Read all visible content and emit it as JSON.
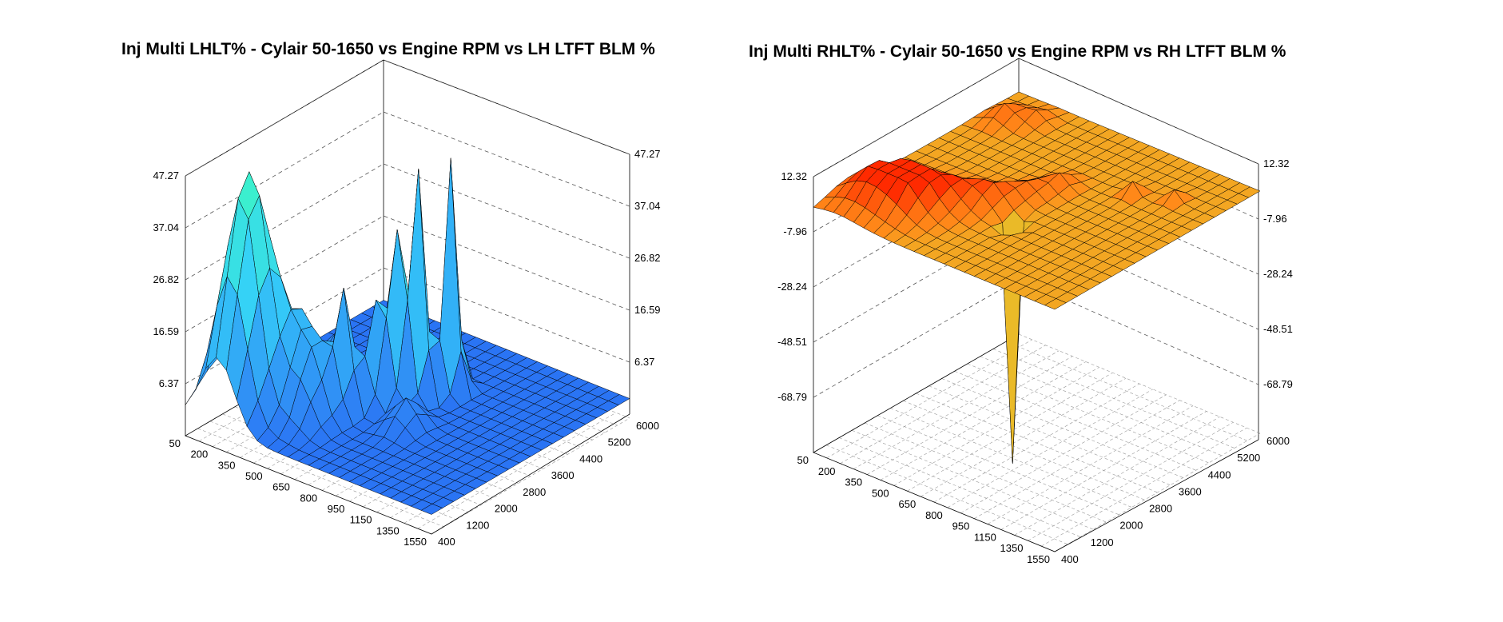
{
  "chart_data": [
    {
      "type": "surface3d",
      "title": "Inj Multi LHLT% - Cylair 50-1650 vs Engine RPM vs LH LTFT BLM %",
      "x_ticks": [
        "200",
        "350",
        "500",
        "650",
        "800",
        "950",
        "1150",
        "1350",
        "1550"
      ],
      "x_min_label": "50",
      "y_ticks": [
        "400",
        "1200",
        "2000",
        "2800",
        "3600",
        "4400",
        "5200",
        "6000"
      ],
      "z_ticks": [
        "6.37",
        "16.59",
        "26.82",
        "37.04",
        "47.27"
      ],
      "zlim": [
        -3.85,
        47.27
      ],
      "colormap": [
        "#1a3cf0",
        "#2f86f5",
        "#35d0f8",
        "#3cf5c8"
      ],
      "grid": {
        "nx": 24,
        "ny": 18
      },
      "base_level": 0,
      "peaks": [
        {
          "x": 3,
          "y": 2,
          "h": 27,
          "w": 1.6
        },
        {
          "x": 4,
          "y": 3,
          "h": 20,
          "w": 1.4
        },
        {
          "x": 2,
          "y": 4,
          "h": 16,
          "w": 1.3
        },
        {
          "x": 6,
          "y": 5,
          "h": 14,
          "w": 1.2
        },
        {
          "x": 8,
          "y": 4,
          "h": 12,
          "w": 1.2
        },
        {
          "x": 9,
          "y": 6,
          "h": 22,
          "w": 0.7
        },
        {
          "x": 10,
          "y": 8,
          "h": 17,
          "w": 0.8
        },
        {
          "x": 11,
          "y": 9,
          "h": 28,
          "w": 0.7
        },
        {
          "x": 12,
          "y": 10,
          "h": 42,
          "w": 0.6
        },
        {
          "x": 13,
          "y": 12,
          "h": 46,
          "w": 0.55
        },
        {
          "x": 5,
          "y": 9,
          "h": 9,
          "w": 1.2
        },
        {
          "x": 14,
          "y": 7,
          "h": 6,
          "w": 1.0
        }
      ]
    },
    {
      "type": "surface3d",
      "title": "Inj Multi RHLT% - Cylair 50-1650 vs Engine RPM vs RH LTFT BLM %",
      "x_ticks": [
        "200",
        "350",
        "500",
        "650",
        "800",
        "950",
        "1150",
        "1350",
        "1550"
      ],
      "x_min_label": "50",
      "y_ticks": [
        "400",
        "1200",
        "2000",
        "2800",
        "3600",
        "4400",
        "5200",
        "6000"
      ],
      "z_ticks": [
        "-68.79",
        "-48.51",
        "-28.24",
        "-7.96",
        "12.32"
      ],
      "zlim": [
        -89.06,
        12.32
      ],
      "colormap": [
        "#d0f53a",
        "#ff8c1a",
        "#ff6a10",
        "#ff2a00"
      ],
      "grid": {
        "nx": 24,
        "ny": 18
      },
      "base_level": 0,
      "peaks": [
        {
          "x": 2,
          "y": 3,
          "h": 8,
          "w": 1.8
        },
        {
          "x": 4,
          "y": 4,
          "h": 10,
          "w": 1.6
        },
        {
          "x": 6,
          "y": 4,
          "h": 9,
          "w": 1.5
        },
        {
          "x": 8,
          "y": 6,
          "h": 7,
          "w": 1.4
        },
        {
          "x": 10,
          "y": 7,
          "h": 6,
          "w": 1.0
        },
        {
          "x": 11,
          "y": 9,
          "h": 5,
          "w": 1.0
        },
        {
          "x": 12,
          "y": 11,
          "h": 5,
          "w": 0.8
        },
        {
          "x": 2,
          "y": 15,
          "h": 6,
          "w": 0.9
        },
        {
          "x": 4,
          "y": 16,
          "h": 4,
          "w": 0.8
        },
        {
          "x": 17,
          "y": 13,
          "h": 5,
          "w": 0.5
        },
        {
          "x": 20,
          "y": 14,
          "h": 4,
          "w": 0.5
        },
        {
          "x": 13,
          "y": 6,
          "h": -88,
          "w": 0.35
        }
      ]
    }
  ]
}
